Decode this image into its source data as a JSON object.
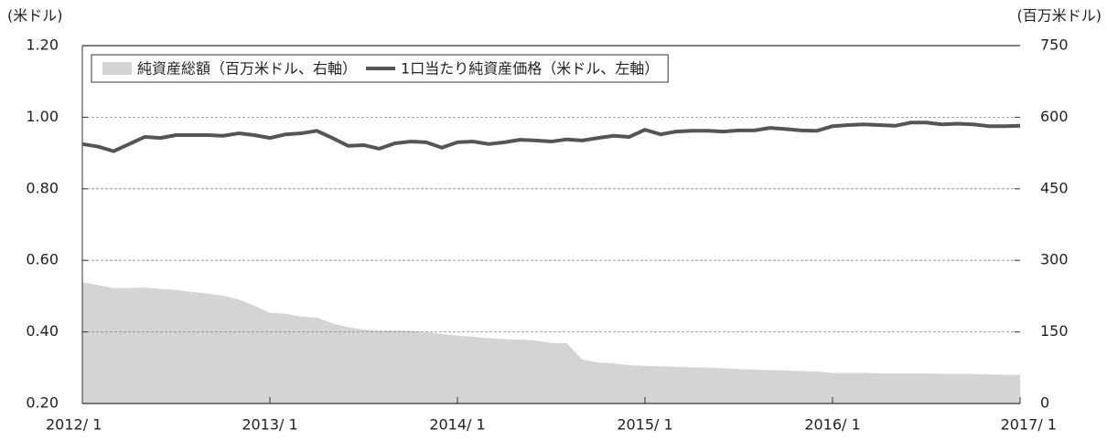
{
  "chart_data": {
    "type": "line-area",
    "y_unit_label": "(米ドル)",
    "y2_unit_label": "(百万米ドル)",
    "categories": [
      "2012/ 1",
      null,
      null,
      null,
      null,
      null,
      null,
      null,
      null,
      null,
      null,
      null,
      "2013/ 1",
      null,
      null,
      null,
      null,
      null,
      null,
      null,
      null,
      null,
      null,
      null,
      "2014/ 1",
      null,
      null,
      null,
      null,
      null,
      null,
      null,
      null,
      null,
      null,
      null,
      "2015/ 1",
      null,
      null,
      null,
      null,
      null,
      null,
      null,
      null,
      null,
      null,
      null,
      "2016/ 1",
      null,
      null,
      null,
      null,
      null,
      null,
      null,
      null,
      null,
      null,
      null,
      "2017/ 1"
    ],
    "series": [
      {
        "name": "純資産総額（百万米ドル、右軸）",
        "kind": "area",
        "axis": "y2",
        "color": "#d4d4d6",
        "values": [
          254,
          248,
          242,
          242,
          243,
          240,
          238,
          234,
          230,
          226,
          218,
          205,
          190,
          188,
          182,
          180,
          168,
          160,
          155,
          153,
          153,
          152,
          150,
          146,
          142,
          140,
          137,
          135,
          134,
          132,
          127,
          126,
          92,
          86,
          84,
          80,
          79,
          78,
          77,
          76,
          75,
          74,
          72,
          71,
          70,
          69,
          68,
          67,
          64,
          64,
          64,
          63,
          63,
          63,
          63,
          62,
          62,
          62,
          61,
          60,
          60
        ]
      },
      {
        "name": "1口当たり純資産価格（米ドル、左軸）",
        "kind": "line",
        "axis": "y",
        "color": "#555555",
        "values": [
          0.925,
          0.918,
          0.905,
          0.925,
          0.945,
          0.942,
          0.95,
          0.95,
          0.95,
          0.948,
          0.955,
          0.95,
          0.942,
          0.952,
          0.955,
          0.962,
          0.942,
          0.92,
          0.922,
          0.912,
          0.927,
          0.932,
          0.93,
          0.915,
          0.93,
          0.932,
          0.925,
          0.93,
          0.937,
          0.935,
          0.932,
          0.938,
          0.935,
          0.942,
          0.948,
          0.945,
          0.965,
          0.952,
          0.96,
          0.962,
          0.962,
          0.96,
          0.963,
          0.963,
          0.97,
          0.967,
          0.963,
          0.962,
          0.975,
          0.978,
          0.98,
          0.978,
          0.976,
          0.985,
          0.985,
          0.98,
          0.982,
          0.98,
          0.975,
          0.975,
          0.976
        ]
      }
    ],
    "ylim": [
      0.2,
      1.2
    ],
    "yticks": [
      {
        "value": 0.2,
        "label": "0.20"
      },
      {
        "value": 0.4,
        "label": "0.40"
      },
      {
        "value": 0.6,
        "label": "0.60"
      },
      {
        "value": 0.8,
        "label": "0.80"
      },
      {
        "value": 1.0,
        "label": "1.00"
      },
      {
        "value": 1.2,
        "label": "1.20"
      }
    ],
    "y2lim": [
      0,
      750
    ],
    "y2ticks": [
      0,
      150,
      300,
      450,
      600,
      750
    ],
    "grid": true,
    "legend": "top-left"
  }
}
